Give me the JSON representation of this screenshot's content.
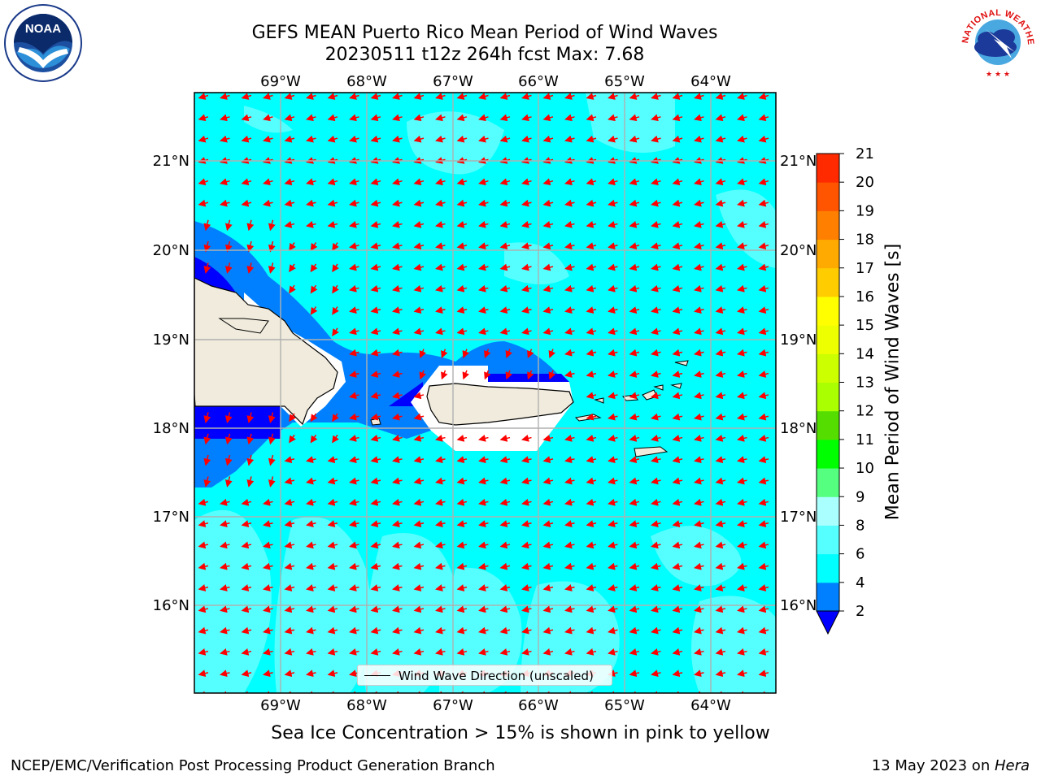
{
  "title": {
    "line1": "GEFS MEAN Puerto Rico Mean Period of Wind Waves",
    "line2": "20230511 t12z 264h fcst   Max: 7.68"
  },
  "map": {
    "lon_labels": [
      "69°W",
      "68°W",
      "67°W",
      "66°W",
      "65°W",
      "64°W"
    ],
    "lat_labels": [
      "21°N",
      "20°N",
      "19°N",
      "18°N",
      "17°N",
      "16°N"
    ],
    "background_colors": {
      "cyan": "#00ffff",
      "light_cyan": "#55ffff",
      "blue": "#0080ff",
      "dark_blue": "#0000ff",
      "land": "#f0ebdc",
      "arrow": "#ff0000"
    }
  },
  "colorbar": {
    "label": "Mean Period of Wind Waves [s]",
    "ticks": [
      "2",
      "4",
      "6",
      "8",
      "9",
      "10",
      "11",
      "12",
      "13",
      "14",
      "15",
      "16",
      "17",
      "18",
      "19",
      "20",
      "21"
    ],
    "colors": [
      "#0080ff",
      "#00ffff",
      "#55ffff",
      "#aaffff",
      "#55ff80",
      "#00ff00",
      "#55dd00",
      "#aaff00",
      "#ccff00",
      "#eeff00",
      "#ffff00",
      "#ffcc00",
      "#ffaa00",
      "#ff8000",
      "#ff5500",
      "#ff2a00",
      "#ff0000"
    ],
    "under_color": "#0000ff"
  },
  "legend": {
    "label": "Wind Wave Direction (unscaled)"
  },
  "caption": "Sea Ice Concentration > 15% is shown in pink to yellow",
  "footer": {
    "left": "NCEP/EMC/Verification Post Processing Product Generation Branch",
    "right_date": "13 May 2023 on ",
    "right_machine": "Hera"
  },
  "logos": {
    "left": "NOAA",
    "right": "NATIONAL WEATHER SERVICE"
  }
}
